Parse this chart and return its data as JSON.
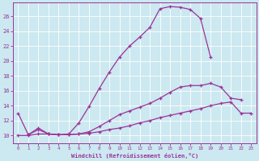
{
  "xlabel": "Windchill (Refroidissement éolien,°C)",
  "bg_color": "#cce8f0",
  "line_color": "#993399",
  "grid_color": "#ffffff",
  "xlim": [
    -0.5,
    23.5
  ],
  "ylim": [
    9.0,
    27.8
  ],
  "xticks": [
    0,
    1,
    2,
    3,
    4,
    5,
    6,
    7,
    8,
    9,
    10,
    11,
    12,
    13,
    14,
    15,
    16,
    17,
    18,
    19,
    20,
    21,
    22,
    23
  ],
  "yticks": [
    10,
    12,
    14,
    16,
    18,
    20,
    22,
    24,
    26
  ],
  "line1_x": [
    0,
    1,
    2,
    3,
    4,
    5,
    6,
    7,
    8,
    9,
    10,
    11,
    12,
    13,
    14,
    15,
    16,
    17,
    18,
    19
  ],
  "line1_y": [
    13.0,
    10.1,
    11.0,
    10.2,
    10.1,
    10.2,
    11.7,
    13.9,
    16.3,
    18.5,
    20.5,
    22.0,
    23.2,
    24.5,
    27.0,
    27.3,
    27.2,
    26.9,
    25.7,
    20.5
  ],
  "line2_x": [
    1,
    2,
    3,
    4,
    5,
    6,
    7,
    8,
    9,
    10,
    11,
    12,
    13,
    14,
    15,
    16,
    17,
    18,
    19,
    20,
    21,
    22
  ],
  "line2_y": [
    10.1,
    10.8,
    10.2,
    10.1,
    10.1,
    10.2,
    10.5,
    11.2,
    12.0,
    12.8,
    13.3,
    13.8,
    14.3,
    15.0,
    15.8,
    16.5,
    16.7,
    16.7,
    17.0,
    16.5,
    15.0,
    14.8
  ],
  "line3_x": [
    0,
    1,
    2,
    3,
    4,
    5,
    6,
    7,
    8,
    9,
    10,
    11,
    12,
    13,
    14,
    15,
    16,
    17,
    18,
    19,
    20,
    21,
    22,
    23
  ],
  "line3_y": [
    10.0,
    10.0,
    10.2,
    10.2,
    10.1,
    10.1,
    10.2,
    10.3,
    10.5,
    10.8,
    11.0,
    11.3,
    11.7,
    12.0,
    12.4,
    12.7,
    13.0,
    13.3,
    13.6,
    14.0,
    14.3,
    14.5,
    13.0,
    13.0
  ]
}
